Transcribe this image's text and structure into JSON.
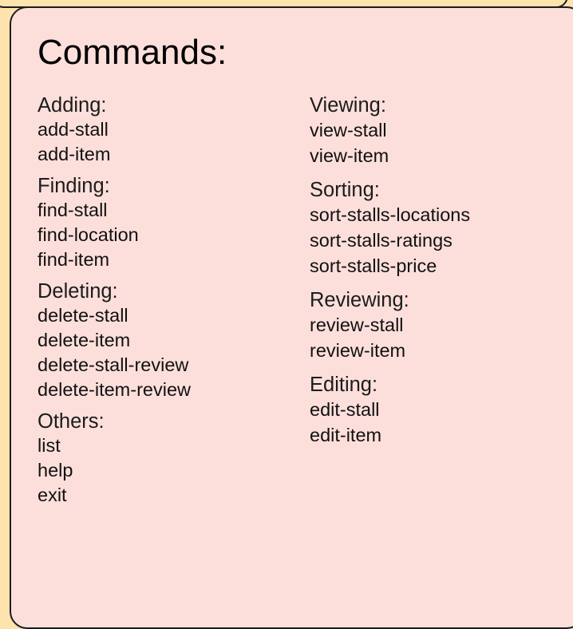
{
  "panel": {
    "title": "Commands:"
  },
  "columns": [
    {
      "groups": [
        {
          "heading": "Adding:",
          "commands": [
            "add-stall",
            "add-item"
          ]
        },
        {
          "heading": "Finding:",
          "commands": [
            "find-stall",
            "find-location",
            "find-item"
          ]
        },
        {
          "heading": "Deleting:",
          "commands": [
            "delete-stall",
            "delete-item",
            "delete-stall-review",
            "delete-item-review"
          ]
        },
        {
          "heading": "Others:",
          "commands": [
            "list",
            "help",
            "exit"
          ]
        }
      ]
    },
    {
      "groups": [
        {
          "heading": "Viewing:",
          "commands": [
            "view-stall",
            "view-item"
          ]
        },
        {
          "heading": "Sorting:",
          "commands": [
            "sort-stalls-locations",
            "sort-stalls-ratings",
            "sort-stalls-price"
          ]
        },
        {
          "heading": "Reviewing:",
          "commands": [
            "review-stall",
            "review-item"
          ]
        },
        {
          "heading": "Editing:",
          "commands": [
            "edit-stall",
            "edit-item"
          ]
        }
      ]
    }
  ],
  "colors": {
    "background": "#fde3ad",
    "panel": "#fcdfdb",
    "border": "#1c1c1c",
    "text": "#111111"
  }
}
